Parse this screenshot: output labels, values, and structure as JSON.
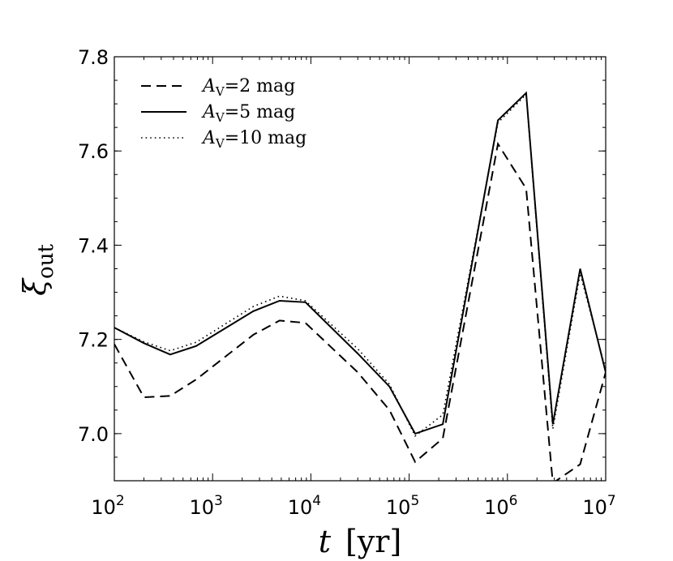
{
  "chart_data": {
    "type": "line",
    "xscale": "log",
    "xlim": [
      100,
      10000000
    ],
    "ylim": [
      6.9,
      7.8
    ],
    "xlabel": {
      "var": "t",
      "unit": "[yr]"
    },
    "ylabel": {
      "symbol": "ξ",
      "subscript": "out"
    },
    "grid": false,
    "legend_position": "top-left",
    "x_ticks": [
      {
        "base": "10",
        "exp": "2"
      },
      {
        "base": "10",
        "exp": "3"
      },
      {
        "base": "10",
        "exp": "4"
      },
      {
        "base": "10",
        "exp": "5"
      },
      {
        "base": "10",
        "exp": "6"
      },
      {
        "base": "10",
        "exp": "7"
      }
    ],
    "y_ticks": [
      "7.0",
      "7.2",
      "7.4",
      "7.6",
      "7.8"
    ],
    "x": [
      100,
      200,
      370,
      680,
      2600,
      4800,
      8800,
      30000,
      63000,
      115000,
      220000,
      800000,
      1550000,
      2900000,
      5500000,
      10000000
    ],
    "series": [
      {
        "name": "A_V=2 mag",
        "label_var": "A",
        "label_sub": "V",
        "label_rest": "=2 mag",
        "style": "dashed",
        "values": [
          7.19,
          7.077,
          7.08,
          7.115,
          7.21,
          7.24,
          7.235,
          7.13,
          7.05,
          6.94,
          6.99,
          7.615,
          7.52,
          6.895,
          6.935,
          7.13
        ]
      },
      {
        "name": "A_V=5 mag",
        "label_var": "A",
        "label_sub": "V",
        "label_rest": "=5 mag",
        "style": "solid",
        "values": [
          7.225,
          7.192,
          7.168,
          7.186,
          7.26,
          7.282,
          7.279,
          7.17,
          7.1,
          7.0,
          7.02,
          7.665,
          7.723,
          7.02,
          7.35,
          7.13
        ]
      },
      {
        "name": "A_V=10 mag",
        "label_var": "A",
        "label_sub": "V",
        "label_rest": "=10 mag",
        "style": "dotted",
        "values": [
          7.225,
          7.195,
          7.176,
          7.194,
          7.27,
          7.292,
          7.282,
          7.18,
          7.105,
          6.995,
          7.04,
          7.66,
          7.72,
          7.01,
          7.34,
          7.135
        ]
      }
    ]
  }
}
